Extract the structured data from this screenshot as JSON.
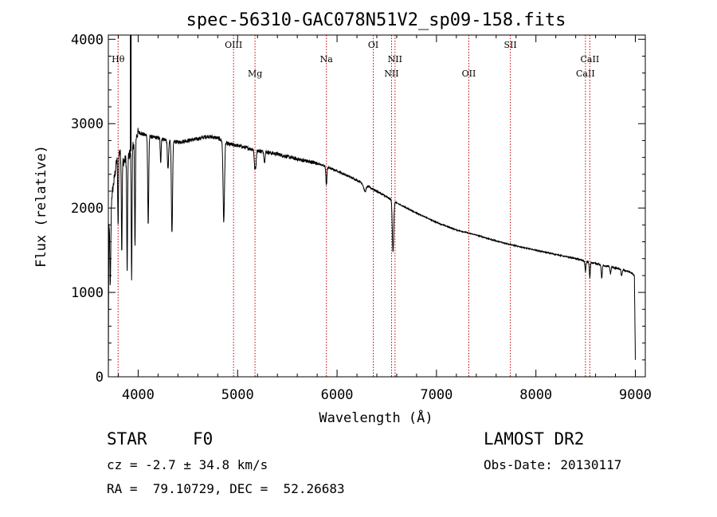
{
  "chart_data": {
    "type": "line",
    "title": "spec-56310-GAC078N51V2_sp09-158.fits",
    "xlabel": "Wavelength (Å)",
    "ylabel": "Flux (relative)",
    "xlim": [
      3700,
      9100
    ],
    "ylim": [
      0,
      4050
    ],
    "xticks": [
      4000,
      5000,
      6000,
      7000,
      8000,
      9000
    ],
    "yticks": [
      0,
      1000,
      2000,
      3000,
      4000
    ],
    "grid": false,
    "continuum": [
      [
        3700,
        0
      ],
      [
        3705,
        1800
      ],
      [
        3730,
        2100
      ],
      [
        3760,
        2350
      ],
      [
        3800,
        2700
      ],
      [
        3850,
        2550
      ],
      [
        3900,
        2600
      ],
      [
        3950,
        2750
      ],
      [
        4000,
        2900
      ],
      [
        4100,
        2850
      ],
      [
        4200,
        2830
      ],
      [
        4400,
        2780
      ],
      [
        4600,
        2820
      ],
      [
        4700,
        2850
      ],
      [
        4800,
        2830
      ],
      [
        4900,
        2760
      ],
      [
        5000,
        2740
      ],
      [
        5200,
        2680
      ],
      [
        5400,
        2640
      ],
      [
        5600,
        2580
      ],
      [
        5800,
        2530
      ],
      [
        6000,
        2440
      ],
      [
        6200,
        2330
      ],
      [
        6400,
        2200
      ],
      [
        6500,
        2130
      ],
      [
        6600,
        2060
      ],
      [
        6800,
        1940
      ],
      [
        7000,
        1830
      ],
      [
        7200,
        1740
      ],
      [
        7400,
        1680
      ],
      [
        7600,
        1610
      ],
      [
        7800,
        1550
      ],
      [
        8000,
        1500
      ],
      [
        8200,
        1450
      ],
      [
        8400,
        1400
      ],
      [
        8600,
        1340
      ],
      [
        8800,
        1290
      ],
      [
        8950,
        1240
      ],
      [
        8990,
        1200
      ],
      [
        9000,
        200
      ]
    ],
    "absorption": [
      {
        "center": 3720,
        "depth": 900,
        "width": 5
      },
      {
        "center": 3798,
        "depth": 900,
        "width": 4
      },
      {
        "center": 3835,
        "depth": 1100,
        "width": 4
      },
      {
        "center": 3889,
        "depth": 1350,
        "width": 4
      },
      {
        "center": 3934,
        "depth": 1500,
        "width": 4
      },
      {
        "center": 3968,
        "depth": 1300,
        "width": 4
      },
      {
        "center": 4101,
        "depth": 1050,
        "width": 5
      },
      {
        "center": 4226,
        "depth": 300,
        "width": 4
      },
      {
        "center": 4300,
        "depth": 350,
        "width": 6
      },
      {
        "center": 4340,
        "depth": 1100,
        "width": 6
      },
      {
        "center": 4861,
        "depth": 950,
        "width": 7
      },
      {
        "center": 5172,
        "depth": 200,
        "width": 5
      },
      {
        "center": 5183,
        "depth": 180,
        "width": 5
      },
      {
        "center": 5270,
        "depth": 120,
        "width": 5
      },
      {
        "center": 5893,
        "depth": 220,
        "width": 5
      },
      {
        "center": 6280,
        "depth": 80,
        "width": 12
      },
      {
        "center": 6563,
        "depth": 600,
        "width": 7
      },
      {
        "center": 8498,
        "depth": 120,
        "width": 5
      },
      {
        "center": 8542,
        "depth": 180,
        "width": 5
      },
      {
        "center": 8662,
        "depth": 150,
        "width": 5
      },
      {
        "center": 8750,
        "depth": 80,
        "width": 5
      },
      {
        "center": 8862,
        "depth": 80,
        "width": 5
      }
    ],
    "spike": {
      "x": 3925,
      "y": 4050
    },
    "lines": [
      {
        "label": "Hθ",
        "x": 3798,
        "row": 1
      },
      {
        "label": "OIII",
        "x": 4959,
        "row": 0
      },
      {
        "label": "Mg",
        "x": 5175,
        "row": 2
      },
      {
        "label": "Na",
        "x": 5893,
        "row": 1
      },
      {
        "label": "OI",
        "x": 6364,
        "row": 0
      },
      {
        "label": "NII",
        "x": 6548,
        "row": 2
      },
      {
        "label": "NII",
        "x": 6583,
        "row": 1
      },
      {
        "label": "OII",
        "x": 7325,
        "row": 2
      },
      {
        "label": "SII",
        "x": 7743,
        "row": 0
      },
      {
        "label": "CaII",
        "x": 8498,
        "row": 2
      },
      {
        "label": "CaII",
        "x": 8542,
        "row": 1
      }
    ],
    "colors": {
      "spectrum": "#000000",
      "line_marker": "#c00000"
    }
  },
  "info": {
    "object_class": "STAR",
    "subclass": "F0",
    "survey": "LAMOST DR2",
    "cz": "cz = -2.7 ± 34.8 km/s",
    "obs_date": "Obs-Date: 20130117",
    "coords": "RA =  79.10729, DEC =  52.26683"
  }
}
